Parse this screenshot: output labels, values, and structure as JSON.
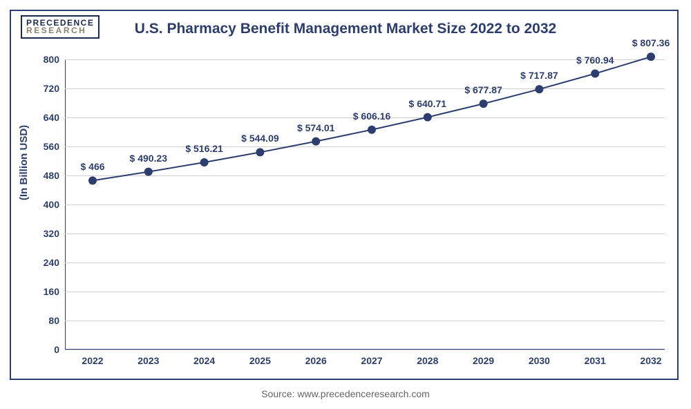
{
  "logo": {
    "line1": "PRECEDENCE",
    "line2": "RESEARCH"
  },
  "title": "U.S. Pharmacy Benefit Management Market Size 2022 to 2032",
  "y_axis_label": "(In Billion USD)",
  "source": "Source: www.precedenceresearch.com",
  "chart": {
    "type": "line",
    "background_color": "#ffffff",
    "line_color": "#2c3e70",
    "marker_color": "#2c3e70",
    "marker_size": 6,
    "line_width": 2,
    "grid_color": "#d0d0d0",
    "ylim": [
      0,
      800
    ],
    "ytick_step": 80,
    "yticks": [
      0,
      80,
      160,
      240,
      320,
      400,
      480,
      560,
      640,
      720,
      800
    ],
    "categories": [
      "2022",
      "2023",
      "2024",
      "2025",
      "2026",
      "2027",
      "2028",
      "2029",
      "2030",
      "2031",
      "2032"
    ],
    "values": [
      466,
      490.23,
      516.21,
      544.09,
      574.01,
      606.16,
      640.71,
      677.87,
      717.87,
      760.94,
      807.36
    ],
    "labels": [
      "$ 466",
      "$ 490.23",
      "$ 516.21",
      "$ 544.09",
      "$ 574.01",
      "$ 606.16",
      "$ 640.71",
      "$ 677.87",
      "$ 717.87",
      "$ 760.94",
      "$ 807.36"
    ],
    "title_fontsize": 21,
    "label_fontsize": 14,
    "tick_fontsize": 14
  }
}
